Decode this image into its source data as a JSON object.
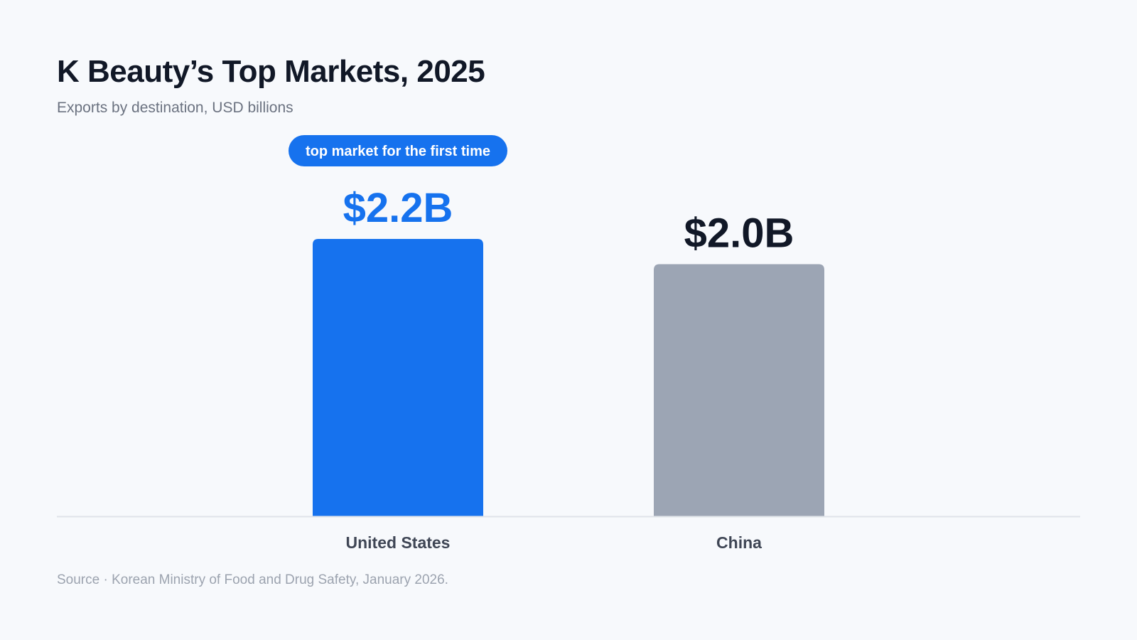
{
  "header": {
    "title": "K Beauty’s Top Markets, 2025",
    "subtitle": "Exports by destination, USD billions"
  },
  "footer": {
    "source": "Source · Korean Ministry of Food and Drug Safety, January 2026."
  },
  "colors": {
    "highlight": "#1672ee",
    "muted_bar": "#9ca5b4",
    "dark_text": "#111827",
    "category_text": "#3f4655",
    "baseline": "#dfe3e9"
  },
  "chart_data": {
    "type": "bar",
    "title": "K Beauty’s Top Markets, 2025",
    "subtitle": "Exports by destination, USD billions",
    "categories": [
      "United States",
      "China"
    ],
    "values": [
      2.2,
      2.0
    ],
    "value_labels": [
      "$2.2B",
      "$2.0B"
    ],
    "highlight_index": 0,
    "annotation": {
      "index": 0,
      "text": "top market for the first time"
    },
    "ylim": [
      0,
      2.2
    ],
    "grid": false,
    "legend": "none",
    "xlabel": "",
    "ylabel": ""
  }
}
